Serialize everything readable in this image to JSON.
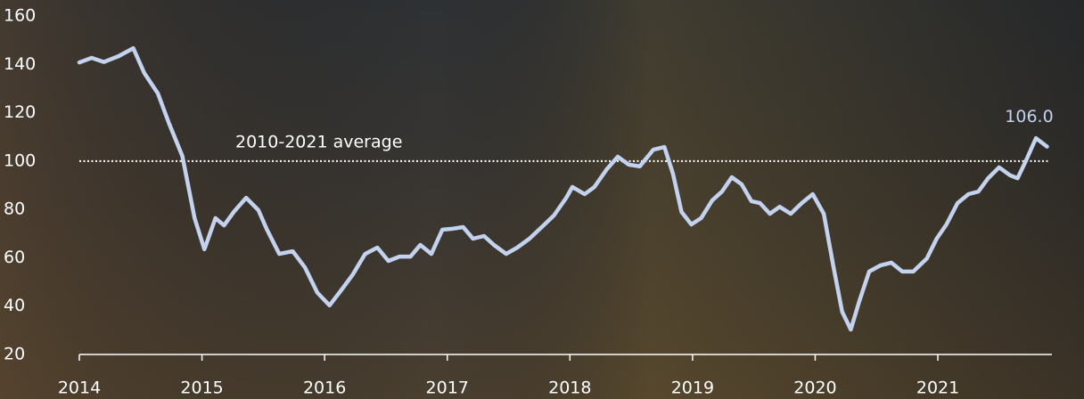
{
  "chart_data": {
    "type": "line",
    "x": [
      2014.0,
      2014.1,
      2014.2,
      2014.32,
      2014.44,
      2014.53,
      2014.64,
      2014.73,
      2014.84,
      2014.94,
      2015.02,
      2015.11,
      2015.18,
      2015.26,
      2015.36,
      2015.46,
      2015.53,
      2015.63,
      2015.74,
      2015.84,
      2015.94,
      2016.04,
      2016.14,
      2016.23,
      2016.33,
      2016.43,
      2016.52,
      2016.61,
      2016.7,
      2016.78,
      2016.87,
      2016.96,
      2017.04,
      2017.13,
      2017.21,
      2017.3,
      2017.38,
      2017.48,
      2017.57,
      2017.67,
      2017.77,
      2017.87,
      2017.97,
      2018.02,
      2018.12,
      2018.2,
      2018.3,
      2018.39,
      2018.48,
      2018.57,
      2018.68,
      2018.77,
      2018.84,
      2018.91,
      2018.99,
      2019.07,
      2019.16,
      2019.24,
      2019.32,
      2019.4,
      2019.48,
      2019.55,
      2019.63,
      2019.71,
      2019.8,
      2019.89,
      2019.98,
      2020.07,
      2020.15,
      2020.22,
      2020.29,
      2020.36,
      2020.44,
      2020.53,
      2020.62,
      2020.71,
      2020.8,
      2020.91,
      2020.99,
      2021.07,
      2021.16,
      2021.25,
      2021.33,
      2021.41,
      2021.5,
      2021.59,
      2021.65,
      2021.72,
      2021.8,
      2021.89
    ],
    "series": [
      {
        "color": "#c3d2ee",
        "values": [
          140.8,
          142.7,
          141,
          143.4,
          146.7,
          136.4,
          128,
          115.8,
          102,
          76.4,
          63.5,
          76.4,
          73.4,
          79,
          84.8,
          79.7,
          71.6,
          61.6,
          62.7,
          56,
          45.6,
          40.3,
          46.9,
          53.1,
          61.6,
          64.2,
          58.7,
          60.5,
          60.5,
          65.3,
          61.6,
          71.6,
          72,
          72.7,
          67.9,
          69,
          65.3,
          61.6,
          64.2,
          67.9,
          72.7,
          77.5,
          84.8,
          89.3,
          86.3,
          89.3,
          96.6,
          101.8,
          98.5,
          97.8,
          104.7,
          105.8,
          94.8,
          79,
          73.8,
          76.4,
          83.7,
          87.4,
          93.3,
          90.4,
          83.4,
          82.6,
          78.2,
          81.1,
          78.2,
          82.6,
          86.3,
          78.2,
          56,
          37.7,
          30.3,
          42.1,
          54.3,
          56.8,
          58,
          54.3,
          54.3,
          59.7,
          67.9,
          73.8,
          82.6,
          86.3,
          87.4,
          92.9,
          97.4,
          94.1,
          92.9,
          100.3,
          109.5,
          106
        ]
      }
    ],
    "end_label": {
      "value": 106,
      "label": "106.0"
    },
    "reference_line": {
      "value": 100,
      "label": "2010-2021 average"
    },
    "xlim": [
      2014,
      2021.93
    ],
    "xticks": [
      2014,
      2015,
      2016,
      2017,
      2018,
      2019,
      2020,
      2021
    ],
    "ylim": [
      20,
      160
    ],
    "yticks": [
      20,
      40,
      60,
      80,
      100,
      120,
      140,
      160
    ]
  }
}
